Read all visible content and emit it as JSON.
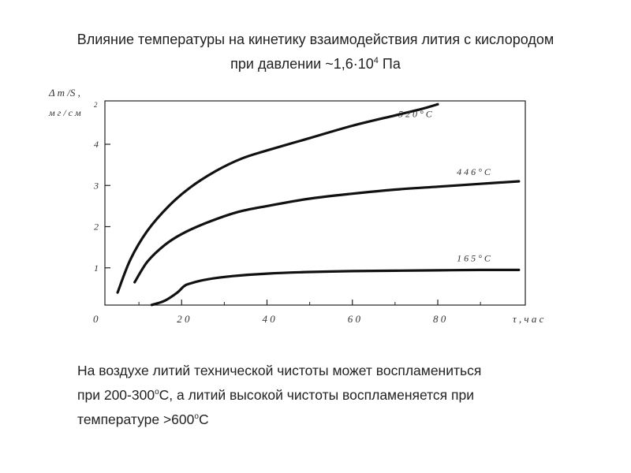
{
  "slide": {
    "title_line1": "Влияние температуры на кинетику взаимодействия лития с кислородом",
    "title_line2_prefix": "при давлении ~1,6·10",
    "title_line2_exp": "4",
    "title_line2_suffix": " Па",
    "caption_line1": "На воздухе литий технической чистоты может воспламениться",
    "caption_line2_a": "при 200-300",
    "caption_deg": "о",
    "caption_line2_b": "С, а литий высокой чистоты воспламеняется при",
    "caption_line3_a": "температуре >600",
    "caption_line3_b": "С"
  },
  "chart_data": {
    "type": "line",
    "title": "",
    "ylabel_line1": "Δ m /S ,",
    "ylabel_line2": "м г / с м",
    "ylabel_exp": "2",
    "xlabel": "τ , ч а с",
    "xlim": [
      0,
      100
    ],
    "ylim": [
      0,
      5.3
    ],
    "x_ticks": [
      0,
      20,
      40,
      60,
      80
    ],
    "x_tick_labels": [
      "0",
      "2 0",
      "4 0",
      "6 0",
      "8 0"
    ],
    "y_ticks": [
      1,
      2,
      3,
      4
    ],
    "y_tick_labels": [
      "1",
      "2",
      "3",
      "4"
    ],
    "grid": false,
    "series": [
      {
        "name": "5 2 0 ° C",
        "color": "#111111",
        "x": [
          5,
          8,
          12,
          17,
          22,
          28,
          34,
          40,
          50,
          60,
          70,
          76,
          80
        ],
        "y": [
          0.4,
          1.2,
          1.9,
          2.5,
          2.95,
          3.35,
          3.65,
          3.85,
          4.15,
          4.45,
          4.7,
          4.85,
          4.97
        ]
      },
      {
        "name": "4 4 6 ° C",
        "color": "#111111",
        "x": [
          9,
          12,
          16,
          20,
          26,
          33,
          40,
          50,
          60,
          70,
          80,
          90,
          99
        ],
        "y": [
          0.65,
          1.15,
          1.55,
          1.82,
          2.1,
          2.35,
          2.5,
          2.68,
          2.8,
          2.9,
          2.97,
          3.04,
          3.1
        ]
      },
      {
        "name": "1 6 5 ° C",
        "color": "#111111",
        "x": [
          13,
          16,
          19,
          20.5,
          22,
          26,
          32,
          40,
          50,
          60,
          70,
          80,
          90,
          99
        ],
        "y": [
          0.1,
          0.2,
          0.4,
          0.55,
          0.62,
          0.72,
          0.8,
          0.86,
          0.9,
          0.92,
          0.93,
          0.94,
          0.95,
          0.95
        ]
      }
    ]
  }
}
